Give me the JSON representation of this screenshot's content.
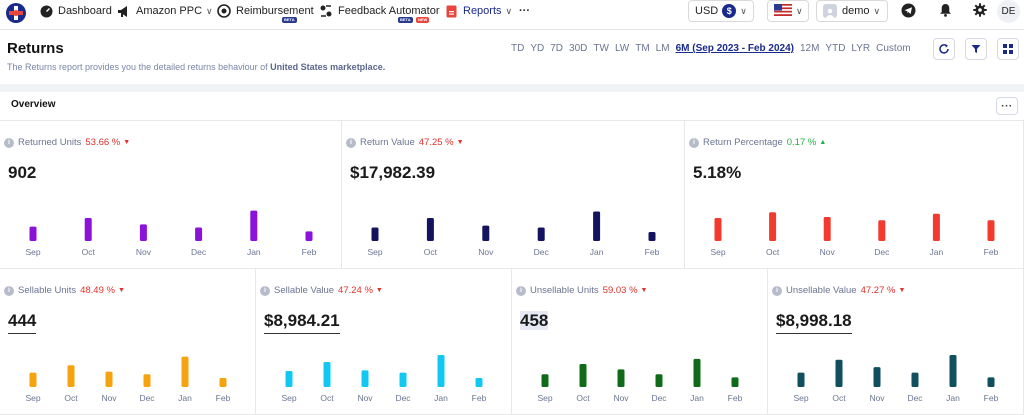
{
  "nav": {
    "items": [
      {
        "label": "Dashboard"
      },
      {
        "label": "Amazon PPC"
      },
      {
        "label": "Reimbursement",
        "badge": "BETA"
      },
      {
        "label": "Feedback Automator",
        "badges": [
          "BETA",
          "NEW"
        ]
      },
      {
        "label": "Reports"
      }
    ],
    "more_label": "···",
    "currency": "USD",
    "currency_symbol": "$",
    "user": "demo",
    "avatar_initials": "DE"
  },
  "header": {
    "title": "Returns",
    "subtitle_prefix": "The Returns report provides you the detailed returns behaviour of ",
    "subtitle_market": "United States marketplace.",
    "periods": [
      "TD",
      "YD",
      "7D",
      "30D",
      "TW",
      "LW",
      "TM",
      "LM",
      "6M (Sep 2023 - Feb 2024)",
      "12M",
      "YTD",
      "LYR",
      "Custom"
    ],
    "active_period": "6M (Sep 2023 - Feb 2024)"
  },
  "overview": {
    "title": "Overview",
    "more_label": "···"
  },
  "months": [
    "Sep",
    "Oct",
    "Nov",
    "Dec",
    "Jan",
    "Feb"
  ],
  "cards": [
    {
      "key": "returned_units",
      "title": "Returned Units",
      "change": "53.66 %",
      "direction": "down",
      "value": "902",
      "color": "#8a12d9",
      "bars": [
        0.45,
        0.72,
        0.52,
        0.42,
        0.95,
        0.3
      ]
    },
    {
      "key": "return_value",
      "title": "Return Value",
      "change": "47.25 %",
      "direction": "down",
      "value": "$17,982.39",
      "color": "#13135e",
      "bars": [
        0.42,
        0.72,
        0.48,
        0.42,
        0.92,
        0.28
      ]
    },
    {
      "key": "return_percentage",
      "title": "Return Percentage",
      "change": "0.17 %",
      "direction": "up",
      "value": "5.18%",
      "color": "#f23a2e",
      "bars": [
        0.72,
        0.9,
        0.75,
        0.65,
        0.85,
        0.65
      ]
    },
    {
      "key": "sellable_units",
      "title": "Sellable Units",
      "change": "48.49 %",
      "direction": "down",
      "value": "444",
      "color": "#f5a30f",
      "bars": [
        0.45,
        0.68,
        0.48,
        0.4,
        0.95,
        0.28
      ]
    },
    {
      "key": "sellable_value",
      "title": "Sellable Value",
      "change": "47.24 %",
      "direction": "down",
      "value": "$8,984.21",
      "color": "#11c8f2",
      "bars": [
        0.5,
        0.78,
        0.52,
        0.45,
        1.0,
        0.28
      ]
    },
    {
      "key": "unsellable_units",
      "title": "Unsellable Units",
      "change": "59.03 %",
      "direction": "down",
      "value": "458",
      "color": "#0f6b1a",
      "bars": [
        0.4,
        0.72,
        0.55,
        0.4,
        0.88,
        0.3
      ]
    },
    {
      "key": "unsellable_value",
      "title": "Unsellable Value",
      "change": "47.27 %",
      "direction": "down",
      "value": "$8,998.18",
      "color": "#0f4f5e",
      "bars": [
        0.45,
        0.85,
        0.62,
        0.45,
        1.0,
        0.3
      ]
    }
  ]
}
